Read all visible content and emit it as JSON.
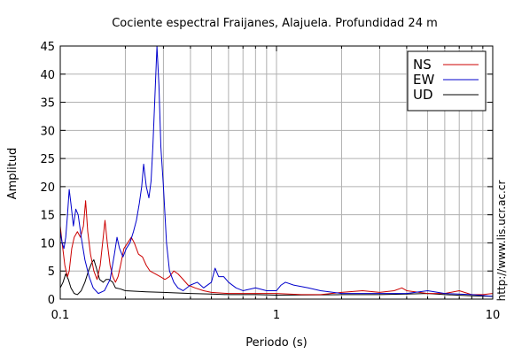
{
  "chart_data": {
    "type": "line",
    "title": "Cociente espectral Fraijanes, Alajuela. Profundidad 24 m",
    "xlabel": "Periodo (s)",
    "ylabel": "Amplitud",
    "x_scale": "log",
    "xlim": [
      0.1,
      10
    ],
    "ylim": [
      0,
      45
    ],
    "x_ticks": [
      0.1,
      1,
      10
    ],
    "x_tick_labels": [
      "0.1",
      "1",
      "10"
    ],
    "y_ticks": [
      0,
      5,
      10,
      15,
      20,
      25,
      30,
      35,
      40,
      45
    ],
    "y_tick_labels": [
      "0",
      "5",
      "10",
      "15",
      "20",
      "25",
      "30",
      "35",
      "40",
      "45"
    ],
    "grid": true,
    "legend_position": "top-right",
    "annotation": "http://www.lis.ucr.ac.cr",
    "series": [
      {
        "name": "NS",
        "color": "#cc0000",
        "points": [
          [
            0.1,
            13
          ],
          [
            0.102,
            10
          ],
          [
            0.105,
            6
          ],
          [
            0.108,
            4
          ],
          [
            0.11,
            5
          ],
          [
            0.113,
            9
          ],
          [
            0.116,
            11
          ],
          [
            0.12,
            12
          ],
          [
            0.124,
            11
          ],
          [
            0.128,
            13
          ],
          [
            0.131,
            17.5
          ],
          [
            0.134,
            12
          ],
          [
            0.138,
            8
          ],
          [
            0.143,
            5
          ],
          [
            0.148,
            3.5
          ],
          [
            0.153,
            6
          ],
          [
            0.158,
            11
          ],
          [
            0.161,
            14
          ],
          [
            0.165,
            10
          ],
          [
            0.17,
            6
          ],
          [
            0.175,
            4
          ],
          [
            0.18,
            3
          ],
          [
            0.185,
            4
          ],
          [
            0.19,
            6
          ],
          [
            0.197,
            9
          ],
          [
            0.205,
            10
          ],
          [
            0.213,
            11
          ],
          [
            0.22,
            10
          ],
          [
            0.23,
            8
          ],
          [
            0.24,
            7.5
          ],
          [
            0.25,
            6
          ],
          [
            0.26,
            5
          ],
          [
            0.275,
            4.5
          ],
          [
            0.29,
            4
          ],
          [
            0.305,
            3.5
          ],
          [
            0.32,
            4
          ],
          [
            0.335,
            5
          ],
          [
            0.35,
            4.5
          ],
          [
            0.37,
            3.5
          ],
          [
            0.39,
            2.5
          ],
          [
            0.42,
            2
          ],
          [
            0.46,
            1.5
          ],
          [
            0.5,
            1.2
          ],
          [
            0.6,
            1
          ],
          [
            0.7,
            1
          ],
          [
            0.8,
            1
          ],
          [
            1,
            1
          ],
          [
            1.3,
            0.8
          ],
          [
            1.6,
            0.8
          ],
          [
            2,
            1.2
          ],
          [
            2.5,
            1.5
          ],
          [
            3,
            1.2
          ],
          [
            3.5,
            1.5
          ],
          [
            3.8,
            2
          ],
          [
            4,
            1.5
          ],
          [
            5,
            1
          ],
          [
            6,
            1
          ],
          [
            7,
            1.5
          ],
          [
            8,
            0.8
          ],
          [
            9,
            0.8
          ],
          [
            10,
            1
          ]
        ]
      },
      {
        "name": "EW",
        "color": "#0000cc",
        "points": [
          [
            0.1,
            12
          ],
          [
            0.102,
            10
          ],
          [
            0.104,
            9
          ],
          [
            0.106,
            11
          ],
          [
            0.108,
            15
          ],
          [
            0.11,
            19.5
          ],
          [
            0.112,
            17
          ],
          [
            0.115,
            13
          ],
          [
            0.118,
            16
          ],
          [
            0.121,
            15
          ],
          [
            0.125,
            11
          ],
          [
            0.13,
            7
          ],
          [
            0.136,
            4
          ],
          [
            0.142,
            2
          ],
          [
            0.15,
            1
          ],
          [
            0.16,
            1.5
          ],
          [
            0.17,
            3.5
          ],
          [
            0.178,
            8
          ],
          [
            0.183,
            11
          ],
          [
            0.188,
            9
          ],
          [
            0.195,
            7.5
          ],
          [
            0.202,
            9
          ],
          [
            0.21,
            10
          ],
          [
            0.218,
            12
          ],
          [
            0.225,
            14
          ],
          [
            0.232,
            17
          ],
          [
            0.238,
            20
          ],
          [
            0.243,
            24
          ],
          [
            0.25,
            20
          ],
          [
            0.257,
            18
          ],
          [
            0.263,
            21
          ],
          [
            0.268,
            27
          ],
          [
            0.274,
            36
          ],
          [
            0.28,
            45
          ],
          [
            0.286,
            38
          ],
          [
            0.292,
            27
          ],
          [
            0.3,
            20
          ],
          [
            0.31,
            10
          ],
          [
            0.32,
            5
          ],
          [
            0.335,
            3
          ],
          [
            0.35,
            2
          ],
          [
            0.37,
            1.5
          ],
          [
            0.4,
            2.5
          ],
          [
            0.43,
            3
          ],
          [
            0.46,
            2
          ],
          [
            0.5,
            3
          ],
          [
            0.52,
            5.5
          ],
          [
            0.54,
            4
          ],
          [
            0.57,
            4
          ],
          [
            0.6,
            3
          ],
          [
            0.65,
            2
          ],
          [
            0.7,
            1.5
          ],
          [
            0.8,
            2
          ],
          [
            0.9,
            1.5
          ],
          [
            1,
            1.5
          ],
          [
            1.05,
            2.5
          ],
          [
            1.1,
            3
          ],
          [
            1.2,
            2.5
          ],
          [
            1.4,
            2
          ],
          [
            1.6,
            1.5
          ],
          [
            2,
            1
          ],
          [
            3,
            1
          ],
          [
            4,
            1
          ],
          [
            5,
            1.5
          ],
          [
            6,
            1
          ],
          [
            8,
            0.8
          ],
          [
            10,
            0.5
          ]
        ]
      },
      {
        "name": "UD",
        "color": "#000000",
        "points": [
          [
            0.1,
            2
          ],
          [
            0.103,
            3
          ],
          [
            0.106,
            4.5
          ],
          [
            0.109,
            3.5
          ],
          [
            0.112,
            2
          ],
          [
            0.116,
            1
          ],
          [
            0.12,
            0.8
          ],
          [
            0.125,
            1.5
          ],
          [
            0.13,
            3
          ],
          [
            0.135,
            5
          ],
          [
            0.14,
            6.5
          ],
          [
            0.143,
            7
          ],
          [
            0.147,
            5.5
          ],
          [
            0.152,
            3.5
          ],
          [
            0.158,
            3
          ],
          [
            0.163,
            3.5
          ],
          [
            0.168,
            3.5
          ],
          [
            0.175,
            3
          ],
          [
            0.18,
            2
          ],
          [
            0.19,
            1.8
          ],
          [
            0.2,
            1.5
          ],
          [
            0.25,
            1.3
          ],
          [
            0.3,
            1.2
          ],
          [
            0.4,
            1
          ],
          [
            0.5,
            0.9
          ],
          [
            0.6,
            0.8
          ],
          [
            0.8,
            0.8
          ],
          [
            1,
            0.7
          ],
          [
            2,
            0.8
          ],
          [
            3,
            0.8
          ],
          [
            4,
            0.9
          ],
          [
            5,
            1
          ],
          [
            6,
            0.8
          ],
          [
            8,
            0.6
          ],
          [
            10,
            0.5
          ]
        ]
      }
    ]
  }
}
